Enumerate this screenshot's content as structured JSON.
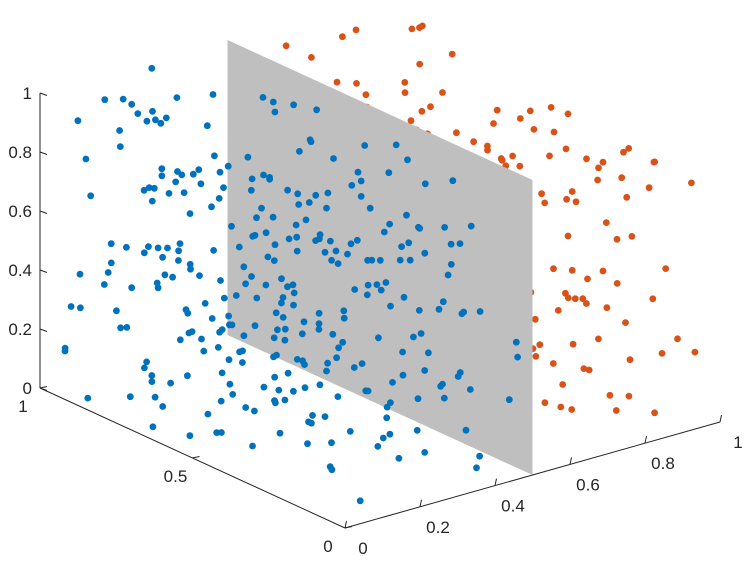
{
  "chart_data": {
    "type": "scatter3d",
    "title": "",
    "xlabel": "",
    "ylabel": "",
    "zlabel": "",
    "xlim": [
      0,
      1
    ],
    "ylim": [
      0,
      1
    ],
    "zlim": [
      0,
      1
    ],
    "x_ticks": [
      "0",
      "0.2",
      "0.4",
      "0.6",
      "0.8",
      "1"
    ],
    "y_ticks": [
      "0",
      "0.5",
      "1"
    ],
    "z_ticks": [
      "0",
      "0.2",
      "0.4",
      "0.6",
      "0.8",
      "1"
    ],
    "decision_plane": {
      "x": 0.5,
      "color": "#bfbfbf"
    },
    "grid": false,
    "series": [
      {
        "color": "#0072bd",
        "n_points": 300,
        "x_range": [
          0,
          0.5
        ],
        "y_range": [
          0,
          1
        ],
        "z_range": [
          0,
          1
        ]
      },
      {
        "color": "#d95319",
        "n_points": 200,
        "x_range": [
          0.5,
          1
        ],
        "y_range": [
          0,
          1
        ],
        "z_range": [
          0,
          1
        ]
      }
    ]
  }
}
